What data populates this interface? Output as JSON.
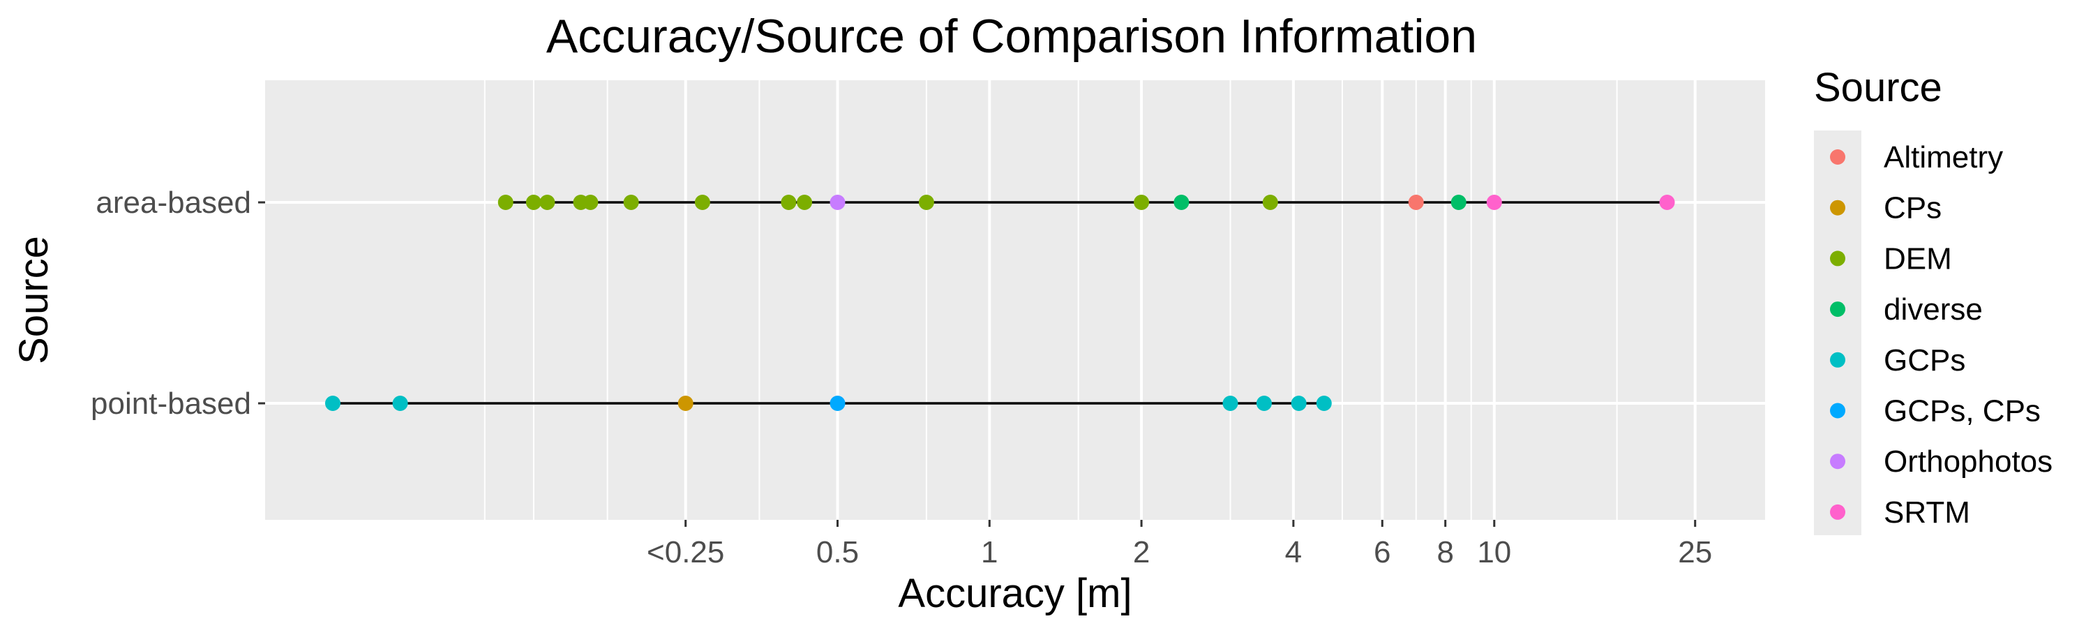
{
  "chart_data": {
    "type": "scatter",
    "title": "Accuracy/Source of Comparison Information",
    "xlabel": "Accuracy [m]",
    "ylabel": "Source",
    "x_scale": "log",
    "xlim": [
      0.05,
      30
    ],
    "grid": true,
    "legend_position": "right",
    "x_ticks": [
      {
        "value": 0.25,
        "label": "<0.25"
      },
      {
        "value": 0.5,
        "label": "0.5"
      },
      {
        "value": 1,
        "label": "1"
      },
      {
        "value": 2,
        "label": "2"
      },
      {
        "value": 4,
        "label": "4"
      },
      {
        "value": 6,
        "label": "6"
      },
      {
        "value": 8,
        "label": "8"
      },
      {
        "value": 10,
        "label": "10"
      },
      {
        "value": 25,
        "label": "25"
      }
    ],
    "x_minor_grid": [
      0.1,
      0.125,
      0.175,
      0.35,
      0.75,
      1.5,
      3,
      5,
      7,
      9,
      17.5
    ],
    "categories": [
      "area-based",
      "point-based"
    ],
    "legend_title": "Source",
    "series": [
      {
        "name": "Altimetry",
        "color": "#F8766D",
        "points": [
          {
            "x": 7,
            "y": "area-based"
          }
        ]
      },
      {
        "name": "CPs",
        "color": "#CD9600",
        "points": [
          {
            "x": 0.25,
            "y": "point-based"
          }
        ]
      },
      {
        "name": "DEM",
        "color": "#7CAE00",
        "points": [
          {
            "x": 0.11,
            "y": "area-based"
          },
          {
            "x": 0.125,
            "y": "area-based"
          },
          {
            "x": 0.133,
            "y": "area-based"
          },
          {
            "x": 0.155,
            "y": "area-based"
          },
          {
            "x": 0.162,
            "y": "area-based"
          },
          {
            "x": 0.195,
            "y": "area-based"
          },
          {
            "x": 0.27,
            "y": "area-based"
          },
          {
            "x": 0.4,
            "y": "area-based"
          },
          {
            "x": 0.43,
            "y": "area-based"
          },
          {
            "x": 0.75,
            "y": "area-based"
          },
          {
            "x": 2,
            "y": "area-based"
          },
          {
            "x": 3.6,
            "y": "area-based"
          }
        ]
      },
      {
        "name": "diverse",
        "color": "#00BE67",
        "points": [
          {
            "x": 2.4,
            "y": "area-based"
          },
          {
            "x": 8.5,
            "y": "area-based"
          }
        ]
      },
      {
        "name": "GCPs",
        "color": "#00BFC4",
        "points": [
          {
            "x": 0.05,
            "y": "point-based"
          },
          {
            "x": 0.068,
            "y": "point-based"
          },
          {
            "x": 3,
            "y": "point-based"
          },
          {
            "x": 3.5,
            "y": "point-based"
          },
          {
            "x": 4.1,
            "y": "point-based"
          },
          {
            "x": 4.6,
            "y": "point-based"
          }
        ]
      },
      {
        "name": "GCPs, CPs",
        "color": "#00A9FF",
        "points": [
          {
            "x": 0.5,
            "y": "point-based"
          }
        ]
      },
      {
        "name": "Orthophotos",
        "color": "#C77CFF",
        "points": [
          {
            "x": 0.5,
            "y": "area-based"
          }
        ]
      },
      {
        "name": "SRTM",
        "color": "#FF61CC",
        "points": [
          {
            "x": 10,
            "y": "area-based"
          },
          {
            "x": 22,
            "y": "area-based"
          }
        ]
      }
    ],
    "ranges": [
      {
        "y": "area-based",
        "from": 0.11,
        "to": 22
      },
      {
        "y": "point-based",
        "from": 0.05,
        "to": 4.6
      }
    ]
  }
}
